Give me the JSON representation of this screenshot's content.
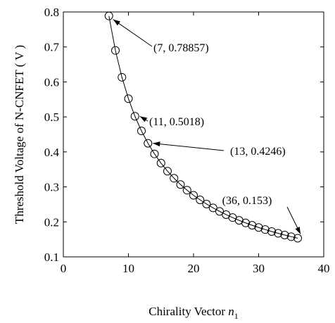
{
  "chart_data": {
    "type": "line",
    "xlabel": "Chirality Vector",
    "xlabel_symbol": "n",
    "xlabel_subscript": "1",
    "ylabel": "Threshold Voltage of N-CNFET ( V )",
    "xlim": [
      0,
      40
    ],
    "ylim": [
      0.1,
      0.8
    ],
    "xticks": [
      0,
      10,
      20,
      30,
      40
    ],
    "xtick_labels": [
      "0",
      "10",
      "20",
      "30",
      "40"
    ],
    "yticks": [
      0.1,
      0.2,
      0.3,
      0.4,
      0.5,
      0.6,
      0.7,
      0.8
    ],
    "ytick_labels": [
      "0.1",
      "0.2",
      "0.3",
      "0.4",
      "0.5",
      "0.6",
      "0.7",
      "0.8"
    ],
    "grid": false,
    "marker": "circle",
    "series": [
      {
        "x": [
          7,
          8,
          9,
          10,
          11,
          12,
          13,
          14,
          15,
          16,
          17,
          18,
          19,
          20,
          21,
          22,
          23,
          24,
          25,
          26,
          27,
          28,
          29,
          30,
          31,
          32,
          33,
          34,
          35,
          36
        ],
        "values": [
          0.78857,
          0.69,
          0.6133,
          0.552,
          0.5018,
          0.46,
          0.4246,
          0.3943,
          0.368,
          0.345,
          0.3247,
          0.3067,
          0.2905,
          0.276,
          0.2629,
          0.2509,
          0.24,
          0.23,
          0.2208,
          0.2123,
          0.2044,
          0.1971,
          0.1903,
          0.184,
          0.1781,
          0.1725,
          0.1673,
          0.1624,
          0.1577,
          0.1533
        ]
      }
    ],
    "annotations": [
      {
        "text": "(7, 0.78857)",
        "x": 7,
        "y": 0.78857
      },
      {
        "text": "(11, 0.5018)",
        "x": 11,
        "y": 0.5018
      },
      {
        "text": "(13, 0.4246)",
        "x": 13,
        "y": 0.4246
      },
      {
        "text": "(36, 0.153)",
        "x": 36,
        "y": 0.153
      }
    ]
  }
}
